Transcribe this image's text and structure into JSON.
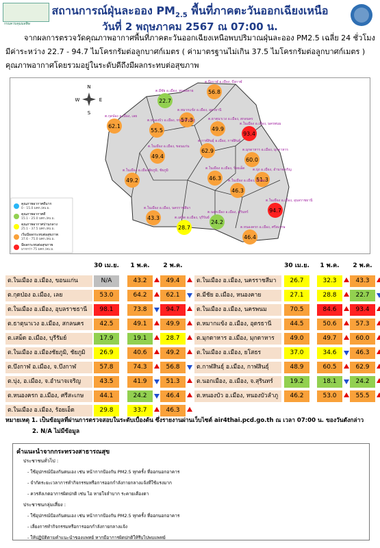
{
  "header": {
    "logo_text": "กรมควบคุมมลพิษ",
    "title": "สถานการณ์ฝุ่นละออง PM",
    "title_sub": "2.5",
    "title_end": " พื้นที่ภาคตะวันออกเฉียงเหนือ",
    "date": "วันที่ 2 พฤษภาคม 2567 ณ 07:00 น."
  },
  "intro": [
    "จากผลการตรวจวัดคุณภาพอากาศพื้นที่ภาคตะวันออกเฉียงเหนือพบปริมาณฝุ่นละออง PM2.5 เฉลี่ย 24 ชั่วโมง",
    "มีค่าระหว่าง 22.7 - 94.7 ไมโครกรัมต่อลูกบาศก์เมตร ( ค่ามาตรฐานไม่เกิน 37.5 ไมโครกรัมต่อลูกบาศก์เมตร )",
    "คุณภาพอากาศโดยรวมอยู่ในระดับดีถึงมีผลกระทบต่อสุขภาพ"
  ],
  "map": {
    "compass": [
      "N",
      "E",
      "S",
      "W"
    ],
    "legend": [
      {
        "label": "คุณภาพอากาศดีมาก",
        "range": "0 - 15.0 มคก./ลบ.ม.",
        "color": "#29b6f6"
      },
      {
        "label": "คุณภาพอากาศดี",
        "range": "15.1 - 25.0 มคก./ลบ.ม.",
        "color": "#92d050"
      },
      {
        "label": "คุณภาพอากาศปานกลาง",
        "range": "25.1 - 37.5 มคก./ลบ.ม.",
        "color": "#ffff00"
      },
      {
        "label": "เริ่มมีผลกระทบต่อสุขภาพ",
        "range": "37.6 - 75.0 มคก./ลบ.ม.",
        "color": "#f9a13a"
      },
      {
        "label": "มีผลกระทบต่อสุขภาพ",
        "range": "มากกว่า 75 มคก./ลบ.ม.",
        "color": "#ff2020"
      }
    ],
    "markers": [
      {
        "label": "ต.บึงกาฬ อ.เมือง, บึงกาฬ",
        "value": "56.8",
        "level": 3
      },
      {
        "label": "ต.มีชัย อ.เมือง, หนองคาย",
        "value": "22.7",
        "level": 1
      },
      {
        "label": "ต.หมากแข้ง อ.เมือง, อุดรธานี",
        "value": "57.3",
        "level": 3
      },
      {
        "label": "ต.กุดป่อง อ.เมือง, เลย",
        "value": "62.1",
        "level": 3
      },
      {
        "label": "ต.หนองบัว อ.เมือง, หนองบัวลำภู",
        "value": "55.5",
        "level": 3
      },
      {
        "label": "ต.ธาตุนาเวง อ.เมือง, สกลนคร",
        "value": "49.9",
        "level": 3
      },
      {
        "label": "ต.ในเมือง อ.เมือง, นครพนม",
        "value": "93.4",
        "level": 4
      },
      {
        "label": "ต.กาฬสินธุ์ อ.เมือง, กาฬสินธุ์",
        "value": "62.9",
        "level": 3
      },
      {
        "label": "ต.มุกดาหาร อ.เมือง, มุกดาหาร",
        "value": "60.0",
        "level": 3
      },
      {
        "label": "ต.ในเมือง อ.เมือง, ขอนแก่น",
        "value": "49.4",
        "level": 3
      },
      {
        "label": "ต.ในเมือง อ.เมืองชัยภูมิ, ชัยภูมิ",
        "value": "49.2",
        "level": 3
      },
      {
        "label": "ต.ในเมือง อ.เมือง, ร้อยเอ็ด",
        "value": "46.3",
        "level": 3
      },
      {
        "label": "ต.บุ่ง อ.เมือง, อำนาจเจริญ",
        "value": "51.3",
        "level": 3
      },
      {
        "label": "ต.ในเมือง อ.เมือง, ยโสธร",
        "value": "46.3",
        "level": 3
      },
      {
        "label": "ต.ในเมือง อ.เมือง, นครราชสีมา",
        "value": "43.3",
        "level": 3
      },
      {
        "label": "ต.เสม็ด อ.เมือง, บุรีรัมย์",
        "value": "28.7",
        "level": 2
      },
      {
        "label": "ต.นอกเมือง อ.เมือง, สุรินทร์",
        "value": "24.2",
        "level": 1
      },
      {
        "label": "ต.ในเมือง อ.เมือง, อุบลราชธานี",
        "value": "94.7",
        "level": 4
      },
      {
        "label": "ต.หนองครก อ.เมือง, ศรีสะเกษ",
        "value": "46.4",
        "level": 3
      }
    ]
  },
  "tables": {
    "columns": [
      "30 เม.ย.",
      "1 พ.ค.",
      "2 พ.ค."
    ],
    "na_color": "#bfbfbf",
    "up_color": "#e00000",
    "down_color": "#1f4fd0",
    "left": [
      {
        "station": "ต.ในเมือง อ.เมือง, ขอนแก่น",
        "cells": [
          {
            "text": "N/A",
            "level": null
          },
          {
            "text": "43.2",
            "level": 3,
            "trend": "up"
          },
          {
            "text": "49.4",
            "level": 3,
            "trend": "up"
          }
        ]
      },
      {
        "station": "ต.กุดป่อง อ.เมือง, เลย",
        "cells": [
          {
            "text": "53.0",
            "level": 3
          },
          {
            "text": "64.2",
            "level": 3,
            "trend": "up"
          },
          {
            "text": "62.1",
            "level": 3,
            "trend": "down"
          }
        ]
      },
      {
        "station": "ต.ในเมือง อ.เมือง, อุบลราชธานี",
        "cells": [
          {
            "text": "98.1",
            "level": 4
          },
          {
            "text": "73.8",
            "level": 3,
            "trend": "down"
          },
          {
            "text": "94.7",
            "level": 4,
            "trend": "up"
          }
        ]
      },
      {
        "station": "ต.ธาตุนาเวง อ.เมือง, สกลนคร",
        "cells": [
          {
            "text": "42.5",
            "level": 3
          },
          {
            "text": "49.1",
            "level": 3,
            "trend": "up"
          },
          {
            "text": "49.9",
            "level": 3,
            "trend": "up"
          }
        ]
      },
      {
        "station": "ต.เสม็ด อ.เมือง, บุรีรัมย์",
        "cells": [
          {
            "text": "17.9",
            "level": 1
          },
          {
            "text": "19.1",
            "level": 1,
            "trend": "up"
          },
          {
            "text": "28.7",
            "level": 2,
            "trend": "up"
          }
        ]
      },
      {
        "station": "ต.ในเมือง อ.เมืองชัยภูมิ, ชัยภูมิ",
        "cells": [
          {
            "text": "26.9",
            "level": 2
          },
          {
            "text": "40.6",
            "level": 3,
            "trend": "up"
          },
          {
            "text": "49.2",
            "level": 3,
            "trend": "up"
          }
        ]
      },
      {
        "station": "ต.บึงกาฬ อ.เมือง, จ.บึงกาฬ",
        "cells": [
          {
            "text": "57.8",
            "level": 3
          },
          {
            "text": "74.3",
            "level": 3,
            "trend": "up"
          },
          {
            "text": "56.8",
            "level": 3,
            "trend": "down"
          }
        ]
      },
      {
        "station": "ต.บุ่ง, อ.เมือง, จ.อำนาจเจริญ",
        "cells": [
          {
            "text": "43.5",
            "level": 3
          },
          {
            "text": "41.9",
            "level": 3,
            "trend": "down"
          },
          {
            "text": "51.3",
            "level": 3,
            "trend": "up"
          }
        ]
      },
      {
        "station": "ต.หนองครก อ.เมือง, ศรีสะเกษ",
        "cells": [
          {
            "text": "44.1",
            "level": 3
          },
          {
            "text": "24.2",
            "level": 1,
            "trend": "down"
          },
          {
            "text": "46.4",
            "level": 3,
            "trend": "up"
          }
        ]
      },
      {
        "station": "ต.ในเมือง อ.เมือง, ร้อยเอ็ด",
        "cells": [
          {
            "text": "29.8",
            "level": 2
          },
          {
            "text": "33.7",
            "level": 2,
            "trend": "up"
          },
          {
            "text": "46.3",
            "level": 3,
            "trend": "up"
          }
        ]
      }
    ],
    "right": [
      {
        "station": "ต.ในเมือง อ.เมือง, นครราชสีมา",
        "cells": [
          {
            "text": "26.7",
            "level": 2
          },
          {
            "text": "32.3",
            "level": 2,
            "trend": "up"
          },
          {
            "text": "43.3",
            "level": 3,
            "trend": "up"
          }
        ]
      },
      {
        "station": "ต.มีชัย อ.เมือง, หนองคาย",
        "cells": [
          {
            "text": "27.1",
            "level": 2
          },
          {
            "text": "28.8",
            "level": 2,
            "trend": "up"
          },
          {
            "text": "22.7",
            "level": 1,
            "trend": "down"
          }
        ]
      },
      {
        "station": "ต.ในเมือง อ.เมือง, นครพนม",
        "cells": [
          {
            "text": "70.5",
            "level": 3
          },
          {
            "text": "84.6",
            "level": 4,
            "trend": "up"
          },
          {
            "text": "93.4",
            "level": 4,
            "trend": "up"
          }
        ]
      },
      {
        "station": "ต.หมากแข้ง อ.เมือง, อุดรธานี",
        "cells": [
          {
            "text": "44.5",
            "level": 3
          },
          {
            "text": "50.6",
            "level": 3,
            "trend": "up"
          },
          {
            "text": "57.3",
            "level": 3,
            "trend": "up"
          }
        ]
      },
      {
        "station": "ต.มุกดาหาร อ.เมือง, มุกดาหาร",
        "cells": [
          {
            "text": "49.0",
            "level": 3
          },
          {
            "text": "49.7",
            "level": 3,
            "trend": "up"
          },
          {
            "text": "60.0",
            "level": 3,
            "trend": "up"
          }
        ]
      },
      {
        "station": "ต.ในเมือง อ.เมือง, ยโสธร",
        "cells": [
          {
            "text": "37.0",
            "level": 2
          },
          {
            "text": "34.6",
            "level": 2,
            "trend": "down"
          },
          {
            "text": "46.3",
            "level": 3,
            "trend": "up"
          }
        ]
      },
      {
        "station": "ต.กาฬสินธุ์ อ.เมือง, กาฬสินธุ์",
        "cells": [
          {
            "text": "48.9",
            "level": 3
          },
          {
            "text": "60.5",
            "level": 3,
            "trend": "up"
          },
          {
            "text": "62.9",
            "level": 3,
            "trend": "up"
          }
        ]
      },
      {
        "station": "ต.นอกเมือง, อ.เมือง, จ.สุรินทร์",
        "cells": [
          {
            "text": "19.2",
            "level": 1
          },
          {
            "text": "18.1",
            "level": 1,
            "trend": "down"
          },
          {
            "text": "24.2",
            "level": 1,
            "trend": "up"
          }
        ]
      },
      {
        "station": "ต.หนองบัว อ.เมือง, หนองบัวลำภู",
        "cells": [
          {
            "text": "46.2",
            "level": 3
          },
          {
            "text": "53.0",
            "level": 3,
            "trend": "up"
          },
          {
            "text": "55.5",
            "level": 3,
            "trend": "up"
          }
        ]
      }
    ]
  },
  "notes": [
    "หมายเหตุ 1. เป็นข้อมูลที่ผ่านการตรวจสอบในระดับเบื้องต้น ซึ่งรายงานผ่านเว็บไซต์ air4thai.pcd.go.th ณ เวลา 07:00 น. ของวันดังกล่าว",
    "2. N/A ไม่มีข้อมูล"
  ],
  "advice": {
    "title": "คำแนะนำจากกระทรวงสาธารณสุข",
    "groups": [
      {
        "heading": "ประชาชนทั่วไป :",
        "items": [
          "- ใช้อุปกรณ์ป้องกันตนเอง เช่น หน้ากากป้องกัน PM2.5 ทุกครั้ง ที่ออกนอกอาคาร",
          "- จำกัดระยะเวลาการทำกิจกรรมหรือการออกกำลังกายกลางแจ้งที่ใช้แรงมาก",
          "- ควรสังเกตอาการผิดปกติ เช่น ไอ หายใจลำบาก ระคายเคืองตา"
        ]
      },
      {
        "heading": "ประชาชนกลุ่มเสี่ยง :",
        "items": [
          "- ใช้อุปกรณ์ป้องกันตนเอง เช่น หน้ากากป้องกัน PM2.5 ทุกครั้ง ที่ออกนอกอาคาร",
          "- เลี่ยงการทำกิจกรรมหรือการออกกำลังกายกลางแจ้ง",
          "- ให้ปฏิบัติตามคำแนะนำของแพทย์ หากมีอาการผิดปกติให้รีบไปพบแพทย์"
        ]
      }
    ]
  }
}
